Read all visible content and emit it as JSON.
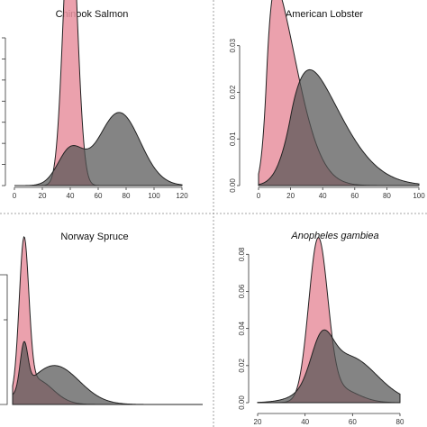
{
  "colors": {
    "pink": "#e8909f",
    "grey": "#555555",
    "outline": "#222222"
  },
  "chart_data": [
    {
      "type": "area",
      "title": "Chinook Salmon",
      "italic_title": false,
      "xlim": [
        0,
        120
      ],
      "x_ticks": [
        0,
        20,
        40,
        60,
        80,
        100,
        120
      ],
      "ylim": [
        0,
        0.045
      ],
      "y_ticks": [],
      "series": [
        {
          "color": "pink",
          "components": [
            {
              "mean": 40,
              "sd": 5,
              "weight": 1
            }
          ]
        },
        {
          "color": "grey",
          "components": [
            {
              "mean": 75,
              "sd": 15,
              "weight": 0.78
            },
            {
              "mean": 40,
              "sd": 9,
              "weight": 0.22
            }
          ]
        }
      ]
    },
    {
      "type": "area",
      "title": "American Lobster",
      "italic_title": false,
      "xlim": [
        0,
        100
      ],
      "x_ticks": [
        0,
        20,
        40,
        60,
        80,
        100
      ],
      "ylim": [
        0,
        0.034
      ],
      "y_ticks": [
        0.0,
        0.01,
        0.02,
        0.03
      ],
      "series": [
        {
          "color": "pink",
          "skewnormal": {
            "xi": 5,
            "omega": 17,
            "alpha": 5
          }
        },
        {
          "color": "grey",
          "skewnormal": {
            "xi": 20,
            "omega": 27,
            "alpha": 3
          }
        }
      ]
    },
    {
      "type": "area",
      "title": "Norway Spruce",
      "italic_title": false,
      "xlim": [
        0,
        100
      ],
      "x_ticks": [],
      "ylim": [
        0,
        0.105
      ],
      "y_ticks": [],
      "series": [
        {
          "color": "pink",
          "components": [
            {
              "mean": 6,
              "sd": 2.5,
              "weight": 0.62
            },
            {
              "mean": 12,
              "sd": 9,
              "weight": 0.38
            }
          ]
        },
        {
          "color": "grey",
          "components": [
            {
              "mean": 22,
              "sd": 13,
              "weight": 0.85
            },
            {
              "mean": 6,
              "sd": 2,
              "weight": 0.15
            }
          ]
        }
      ]
    },
    {
      "type": "area",
      "title": "Anopheles gambiea",
      "italic_title": true,
      "xlim": [
        20,
        80
      ],
      "x_ticks": [
        20,
        40,
        60,
        80
      ],
      "ylim": [
        0,
        0.085
      ],
      "y_ticks": [
        0.0,
        0.02,
        0.04,
        0.06,
        0.08
      ],
      "series": [
        {
          "color": "pink",
          "components": [
            {
              "mean": 45.5,
              "sd": 4,
              "weight": 0.85
            },
            {
              "mean": 54,
              "sd": 8,
              "weight": 0.15
            }
          ]
        },
        {
          "color": "grey",
          "components": [
            {
              "mean": 47,
              "sd": 4.5,
              "weight": 0.25
            },
            {
              "mean": 58,
              "sd": 12,
              "weight": 0.75
            }
          ]
        }
      ]
    }
  ]
}
